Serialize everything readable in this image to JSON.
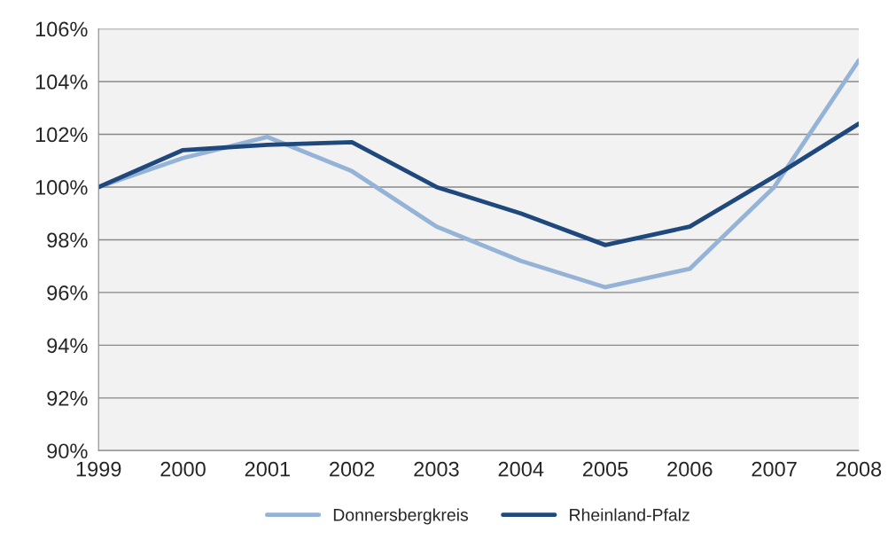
{
  "chart_data": {
    "type": "line",
    "x": [
      1999,
      2000,
      2001,
      2002,
      2003,
      2004,
      2005,
      2006,
      2007,
      2008
    ],
    "series": [
      {
        "name": "Donnersbergkreis",
        "color": "#95b3d7",
        "values": [
          100,
          101.1,
          101.9,
          100.6,
          98.5,
          97.2,
          96.2,
          96.9,
          100.0,
          104.8
        ]
      },
      {
        "name": "Rheinland-Pfalz",
        "color": "#1f497d",
        "values": [
          100,
          101.4,
          101.6,
          101.7,
          100.0,
          99.0,
          97.8,
          98.5,
          100.4,
          102.4
        ]
      }
    ],
    "xlim": [
      1999,
      2008
    ],
    "xticks": [
      1999,
      2000,
      2001,
      2002,
      2003,
      2004,
      2005,
      2006,
      2007,
      2008
    ],
    "ylim": [
      90,
      106
    ],
    "yticks": [
      {
        "value": 90,
        "label": "90%"
      },
      {
        "value": 92,
        "label": "92%"
      },
      {
        "value": 94,
        "label": "94%"
      },
      {
        "value": 96,
        "label": "96%"
      },
      {
        "value": 98,
        "label": "98%"
      },
      {
        "value": 100,
        "label": "100%"
      },
      {
        "value": 102,
        "label": "102%"
      },
      {
        "value": 104,
        "label": "104%"
      },
      {
        "value": 106,
        "label": "106%"
      }
    ],
    "grid": "y",
    "legend": "bottom",
    "marker": "none",
    "line_style": "solid"
  }
}
